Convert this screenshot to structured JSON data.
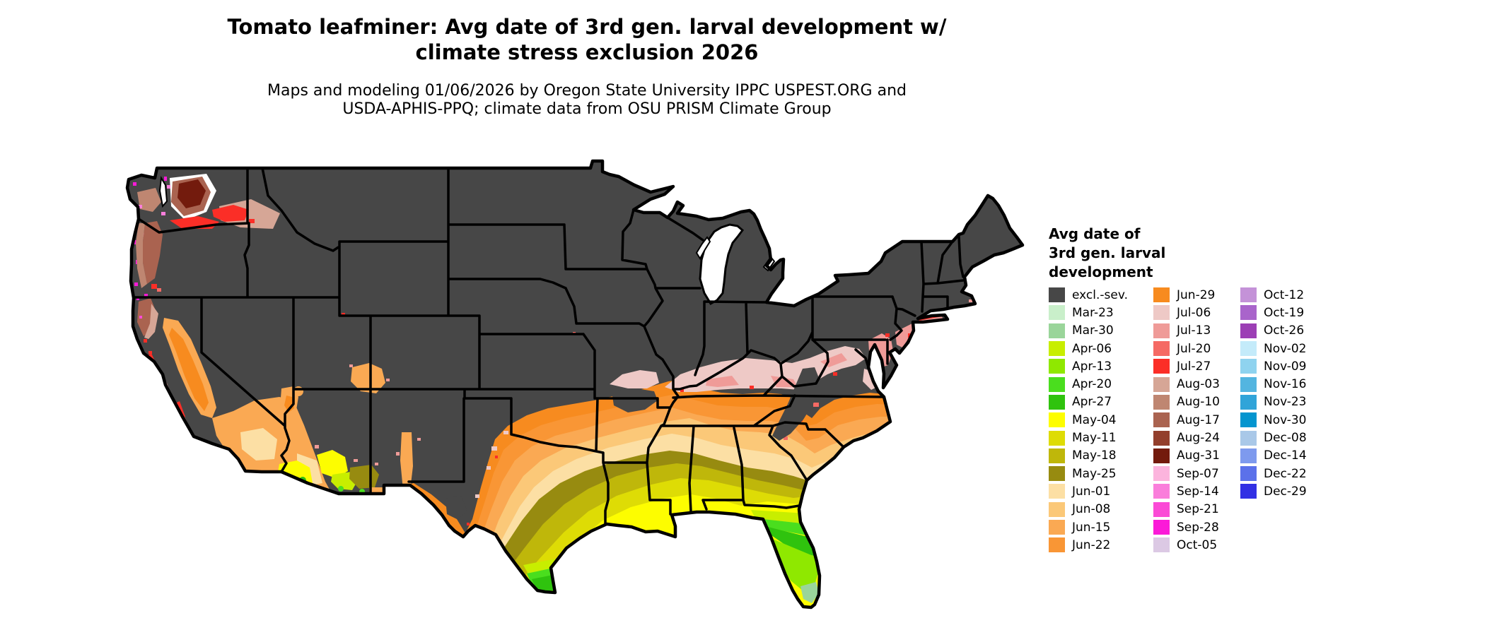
{
  "title": {
    "line1": "Tomato leafminer: Avg date of 3rd gen. larval development w/",
    "line2": "climate stress exclusion 2026"
  },
  "subtitle": {
    "line1": "Maps and modeling 01/06/2026 by Oregon State University IPPC USPEST.ORG and",
    "line2": "USDA-APHIS-PPQ; climate data from OSU PRISM Climate Group"
  },
  "legend": {
    "title_lines": [
      "Avg date of",
      "3rd gen. larval",
      "development"
    ],
    "columns": [
      [
        {
          "label": "excl.-sev.",
          "color": "#474747"
        },
        {
          "label": "Mar-23",
          "color": "#c9efca"
        },
        {
          "label": "Mar-30",
          "color": "#9ad59a"
        },
        {
          "label": "Apr-06",
          "color": "#c8ee00"
        },
        {
          "label": "Apr-13",
          "color": "#8fe800"
        },
        {
          "label": "Apr-20",
          "color": "#4ade1e"
        },
        {
          "label": "Apr-27",
          "color": "#2fc30e"
        },
        {
          "label": "May-04",
          "color": "#fdfd00"
        },
        {
          "label": "May-11",
          "color": "#dedc05"
        },
        {
          "label": "May-18",
          "color": "#bfb70a"
        },
        {
          "label": "May-25",
          "color": "#978b10"
        },
        {
          "label": "Jun-01",
          "color": "#fcdfa4"
        },
        {
          "label": "Jun-08",
          "color": "#fbc878"
        },
        {
          "label": "Jun-15",
          "color": "#faa953"
        },
        {
          "label": "Jun-22",
          "color": "#f99635"
        }
      ],
      [
        {
          "label": "Jun-29",
          "color": "#f78b1f"
        },
        {
          "label": "Jul-06",
          "color": "#eec9c6"
        },
        {
          "label": "Jul-13",
          "color": "#ef9b98"
        },
        {
          "label": "Jul-20",
          "color": "#f56a64"
        },
        {
          "label": "Jul-27",
          "color": "#fb2e27"
        },
        {
          "label": "Aug-03",
          "color": "#d6a696"
        },
        {
          "label": "Aug-10",
          "color": "#bf8671"
        },
        {
          "label": "Aug-17",
          "color": "#aa6350"
        },
        {
          "label": "Aug-24",
          "color": "#933f2c"
        },
        {
          "label": "Aug-31",
          "color": "#731b0d"
        },
        {
          "label": "Sep-07",
          "color": "#fcb4dd"
        },
        {
          "label": "Sep-14",
          "color": "#fa7edb"
        },
        {
          "label": "Sep-21",
          "color": "#fb4ad6"
        },
        {
          "label": "Sep-28",
          "color": "#fb1ad8"
        },
        {
          "label": "Oct-05",
          "color": "#dcc9e4"
        }
      ],
      [
        {
          "label": "Oct-12",
          "color": "#c492d8"
        },
        {
          "label": "Oct-19",
          "color": "#a964cb"
        },
        {
          "label": "Oct-26",
          "color": "#9c3fb5"
        },
        {
          "label": "Nov-02",
          "color": "#c4ebfa"
        },
        {
          "label": "Nov-09",
          "color": "#8fd3ef"
        },
        {
          "label": "Nov-16",
          "color": "#53b5e0"
        },
        {
          "label": "Nov-23",
          "color": "#30a4d9"
        },
        {
          "label": "Nov-30",
          "color": "#0495cf"
        },
        {
          "label": "Dec-08",
          "color": "#a9c8e8"
        },
        {
          "label": "Dec-14",
          "color": "#7e9aee"
        },
        {
          "label": "Dec-22",
          "color": "#5b71ea"
        },
        {
          "label": "Dec-29",
          "color": "#3230e4"
        }
      ]
    ]
  },
  "map": {
    "excluded_color": "#474747",
    "water_color": "#ffffff",
    "border_color": "#000000",
    "region": "Contiguous United States with state borders"
  }
}
